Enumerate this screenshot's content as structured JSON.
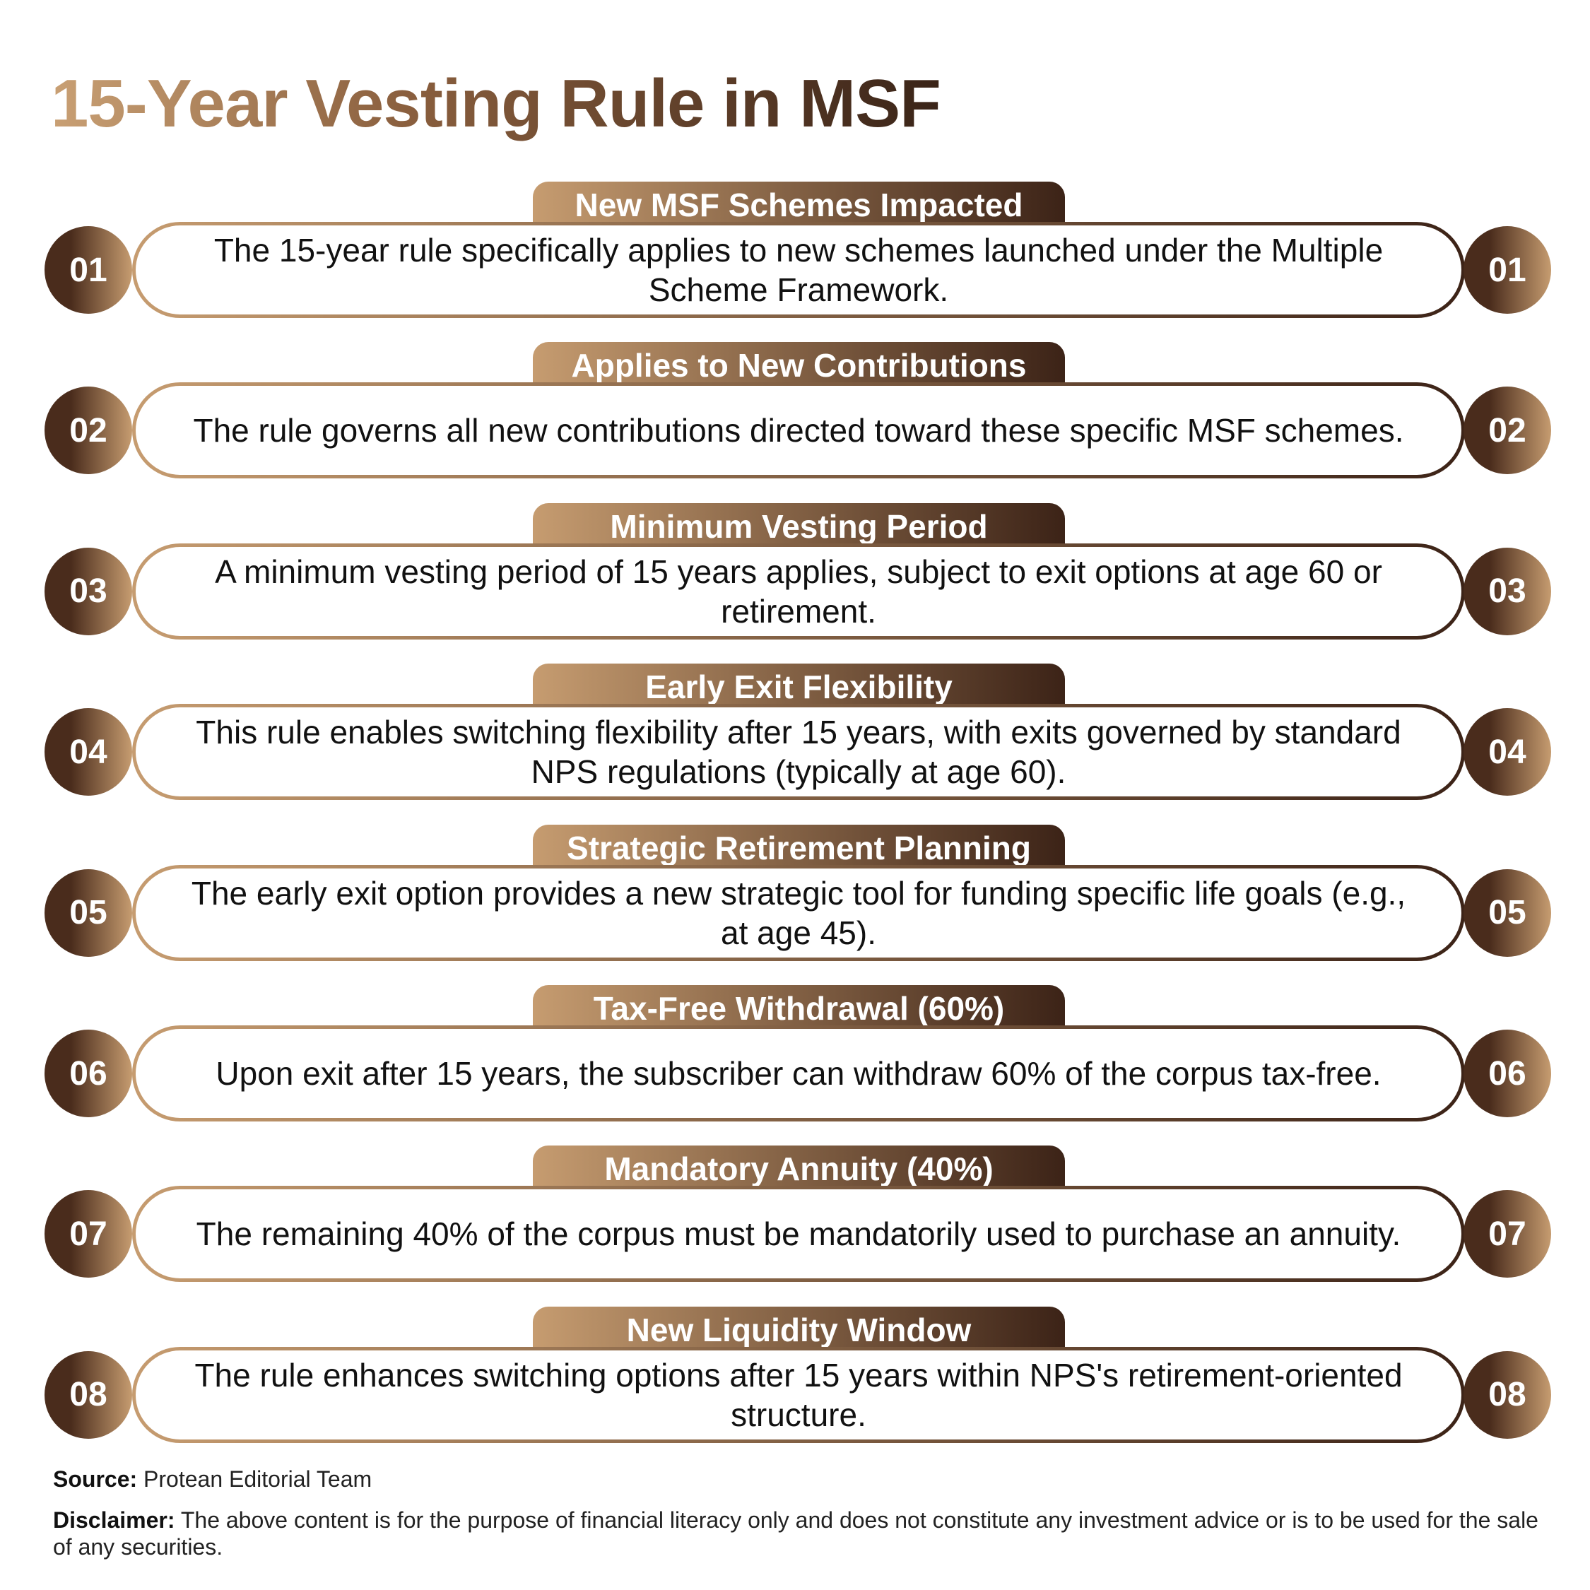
{
  "title": "15-Year Vesting Rule in MSF",
  "items": [
    {
      "number": "01",
      "heading": "New MSF Schemes Impacted",
      "text": "The 15-year rule specifically applies to new schemes launched under the Multiple Scheme Framework."
    },
    {
      "number": "02",
      "heading": "Applies to New Contributions",
      "text": "The rule governs all new contributions directed toward these specific MSF schemes."
    },
    {
      "number": "03",
      "heading": "Minimum Vesting Period",
      "text": "A minimum vesting period of 15 years applies, subject to exit options at age 60 or retirement."
    },
    {
      "number": "04",
      "heading": "Early Exit Flexibility",
      "text": "This rule enables switching flexibility after 15 years, with exits governed by standard NPS regulations (typically at age 60)."
    },
    {
      "number": "05",
      "heading": "Strategic Retirement Planning",
      "text": "The early exit option provides a new strategic tool for funding specific life goals (e.g., at age 45)."
    },
    {
      "number": "06",
      "heading": "Tax-Free Withdrawal (60%)",
      "text": "Upon exit after 15 years, the subscriber can withdraw 60% of the corpus tax-free."
    },
    {
      "number": "07",
      "heading": "Mandatory Annuity (40%)",
      "text": "The remaining 40% of the corpus must be mandatorily used to purchase an annuity."
    },
    {
      "number": "08",
      "heading": "New Liquidity Window",
      "text": "The rule enhances switching options after 15 years within NPS's retirement-oriented structure."
    }
  ],
  "source": {
    "label": "Source:",
    "text": "Protean Editorial Team"
  },
  "disclaimer": {
    "label": "Disclaimer:",
    "text": "The above content is for the purpose of financial literacy only and does not constitute any investment advice or is to be used for the sale of any securities."
  }
}
